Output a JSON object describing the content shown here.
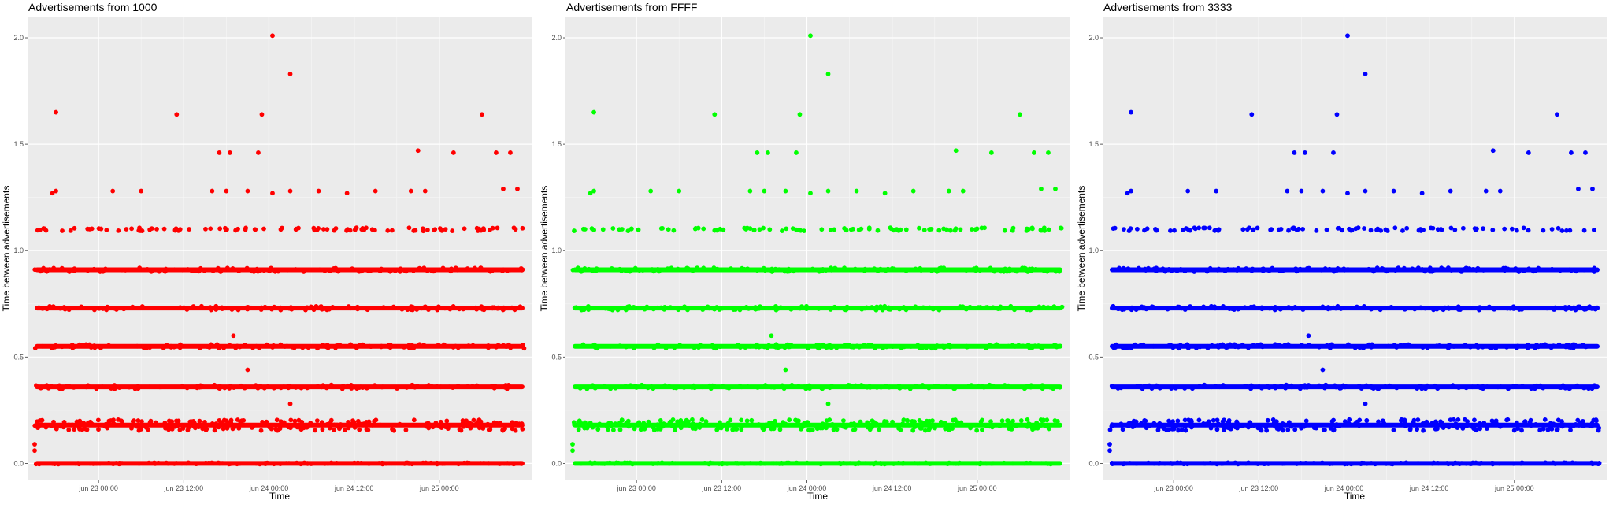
{
  "chart_data": [
    {
      "type": "scatter",
      "title": "Advertisements from 1000",
      "xlabel": "Time",
      "ylabel": "Time between advertisements",
      "color": "#ff0000",
      "ylim": [
        -0.08,
        2.1
      ],
      "xlim": [
        "2023-06-22T14:00",
        "2023-06-25T13:00"
      ],
      "x_ticks": [
        {
          "label": "jun 23 00:00",
          "value": "2023-06-23T00:00"
        },
        {
          "label": "jun 23 12:00",
          "value": "2023-06-23T12:00"
        },
        {
          "label": "jun 24 00:00",
          "value": "2023-06-24T00:00"
        },
        {
          "label": "jun 24 12:00",
          "value": "2023-06-24T12:00"
        },
        {
          "label": "jun 25 00:00",
          "value": "2023-06-25T00:00"
        }
      ],
      "y_ticks": [
        {
          "label": "0.0",
          "value": 0.0
        },
        {
          "label": "0.5",
          "value": 0.5
        },
        {
          "label": "1.0",
          "value": 1.0
        },
        {
          "label": "1.5",
          "value": 1.5
        },
        {
          "label": "2.0",
          "value": 2.0
        }
      ],
      "grid": true,
      "dense_bands": {
        "x_range": [
          "2023-06-22T15:00",
          "2023-06-25T12:00"
        ],
        "y_values": [
          0.0,
          0.18,
          0.36,
          0.55,
          0.73,
          0.91
        ]
      },
      "points": [
        {
          "x": "2023-06-22T18:00",
          "y": 1.65
        },
        {
          "x": "2023-06-22T18:00",
          "y": 1.28
        },
        {
          "x": "2023-06-22T17:30",
          "y": 1.27
        },
        {
          "x": "2023-06-23T02:00",
          "y": 1.28
        },
        {
          "x": "2023-06-23T06:00",
          "y": 1.28
        },
        {
          "x": "2023-06-23T11:00",
          "y": 1.64
        },
        {
          "x": "2023-06-23T17:00",
          "y": 1.46
        },
        {
          "x": "2023-06-23T18:30",
          "y": 1.46
        },
        {
          "x": "2023-06-23T16:00",
          "y": 1.28
        },
        {
          "x": "2023-06-23T18:00",
          "y": 1.28
        },
        {
          "x": "2023-06-23T21:00",
          "y": 1.28
        },
        {
          "x": "2023-06-23T23:00",
          "y": 1.64
        },
        {
          "x": "2023-06-23T22:30",
          "y": 1.46
        },
        {
          "x": "2023-06-24T00:30",
          "y": 2.01
        },
        {
          "x": "2023-06-24T03:00",
          "y": 1.83
        },
        {
          "x": "2023-06-24T00:30",
          "y": 1.27
        },
        {
          "x": "2023-06-24T03:00",
          "y": 1.28
        },
        {
          "x": "2023-06-24T07:00",
          "y": 1.28
        },
        {
          "x": "2023-06-24T11:00",
          "y": 1.27
        },
        {
          "x": "2023-06-24T15:00",
          "y": 1.28
        },
        {
          "x": "2023-06-24T21:00",
          "y": 1.47
        },
        {
          "x": "2023-06-24T20:00",
          "y": 1.28
        },
        {
          "x": "2023-06-24T22:00",
          "y": 1.28
        },
        {
          "x": "2023-06-25T02:00",
          "y": 1.46
        },
        {
          "x": "2023-06-25T06:00",
          "y": 1.64
        },
        {
          "x": "2023-06-25T08:00",
          "y": 1.46
        },
        {
          "x": "2023-06-25T10:00",
          "y": 1.46
        },
        {
          "x": "2023-06-25T09:00",
          "y": 1.29
        },
        {
          "x": "2023-06-25T11:00",
          "y": 1.29
        },
        {
          "x": "2023-06-23T19:00",
          "y": 0.6
        },
        {
          "x": "2023-06-23T21:00",
          "y": 0.44
        },
        {
          "x": "2023-06-24T03:00",
          "y": 0.28
        },
        {
          "x": "2023-06-22T15:00",
          "y": 0.09
        },
        {
          "x": "2023-06-22T15:00",
          "y": 0.06
        }
      ]
    },
    {
      "type": "scatter",
      "title": "Advertisements from FFFF",
      "xlabel": "Time",
      "ylabel": "Time between advertisements",
      "color": "#00ff00",
      "ylim": [
        -0.08,
        2.1
      ],
      "xlim": [
        "2023-06-22T14:00",
        "2023-06-25T13:00"
      ],
      "x_ticks": [
        {
          "label": "jun 23 00:00",
          "value": "2023-06-23T00:00"
        },
        {
          "label": "jun 23 12:00",
          "value": "2023-06-23T12:00"
        },
        {
          "label": "jun 24 00:00",
          "value": "2023-06-24T00:00"
        },
        {
          "label": "jun 24 12:00",
          "value": "2023-06-24T12:00"
        },
        {
          "label": "jun 25 00:00",
          "value": "2023-06-25T00:00"
        }
      ],
      "y_ticks": [
        {
          "label": "0.0",
          "value": 0.0
        },
        {
          "label": "0.5",
          "value": 0.5
        },
        {
          "label": "1.0",
          "value": 1.0
        },
        {
          "label": "1.5",
          "value": 1.5
        },
        {
          "label": "2.0",
          "value": 2.0
        }
      ],
      "grid": true,
      "dense_bands": {
        "x_range": [
          "2023-06-22T15:00",
          "2023-06-25T12:00"
        ],
        "y_values": [
          0.0,
          0.18,
          0.36,
          0.55,
          0.73,
          0.91
        ]
      },
      "points": [
        {
          "x": "2023-06-22T18:00",
          "y": 1.65
        },
        {
          "x": "2023-06-22T18:00",
          "y": 1.28
        },
        {
          "x": "2023-06-22T17:30",
          "y": 1.27
        },
        {
          "x": "2023-06-23T02:00",
          "y": 1.28
        },
        {
          "x": "2023-06-23T06:00",
          "y": 1.28
        },
        {
          "x": "2023-06-23T11:00",
          "y": 1.64
        },
        {
          "x": "2023-06-23T17:00",
          "y": 1.46
        },
        {
          "x": "2023-06-23T18:30",
          "y": 1.46
        },
        {
          "x": "2023-06-23T16:00",
          "y": 1.28
        },
        {
          "x": "2023-06-23T18:00",
          "y": 1.28
        },
        {
          "x": "2023-06-23T21:00",
          "y": 1.28
        },
        {
          "x": "2023-06-23T23:00",
          "y": 1.64
        },
        {
          "x": "2023-06-23T22:30",
          "y": 1.46
        },
        {
          "x": "2023-06-24T00:30",
          "y": 2.01
        },
        {
          "x": "2023-06-24T03:00",
          "y": 1.83
        },
        {
          "x": "2023-06-24T00:30",
          "y": 1.27
        },
        {
          "x": "2023-06-24T03:00",
          "y": 1.28
        },
        {
          "x": "2023-06-24T07:00",
          "y": 1.28
        },
        {
          "x": "2023-06-24T11:00",
          "y": 1.27
        },
        {
          "x": "2023-06-24T15:00",
          "y": 1.28
        },
        {
          "x": "2023-06-24T21:00",
          "y": 1.47
        },
        {
          "x": "2023-06-24T20:00",
          "y": 1.28
        },
        {
          "x": "2023-06-24T22:00",
          "y": 1.28
        },
        {
          "x": "2023-06-25T02:00",
          "y": 1.46
        },
        {
          "x": "2023-06-25T06:00",
          "y": 1.64
        },
        {
          "x": "2023-06-25T08:00",
          "y": 1.46
        },
        {
          "x": "2023-06-25T10:00",
          "y": 1.46
        },
        {
          "x": "2023-06-25T09:00",
          "y": 1.29
        },
        {
          "x": "2023-06-25T11:00",
          "y": 1.29
        },
        {
          "x": "2023-06-23T19:00",
          "y": 0.6
        },
        {
          "x": "2023-06-23T21:00",
          "y": 0.44
        },
        {
          "x": "2023-06-24T03:00",
          "y": 0.28
        },
        {
          "x": "2023-06-22T15:00",
          "y": 0.09
        },
        {
          "x": "2023-06-22T15:00",
          "y": 0.06
        }
      ]
    },
    {
      "type": "scatter",
      "title": "Advertisements from 3333",
      "xlabel": "Time",
      "ylabel": "Time between advertisements",
      "color": "#0000ff",
      "ylim": [
        -0.08,
        2.1
      ],
      "xlim": [
        "2023-06-22T14:00",
        "2023-06-25T13:00"
      ],
      "x_ticks": [
        {
          "label": "jun 23 00:00",
          "value": "2023-06-23T00:00"
        },
        {
          "label": "jun 23 12:00",
          "value": "2023-06-23T12:00"
        },
        {
          "label": "jun 24 00:00",
          "value": "2023-06-24T00:00"
        },
        {
          "label": "jun 24 12:00",
          "value": "2023-06-24T12:00"
        },
        {
          "label": "jun 25 00:00",
          "value": "2023-06-25T00:00"
        }
      ],
      "y_ticks": [
        {
          "label": "0.0",
          "value": 0.0
        },
        {
          "label": "0.5",
          "value": 0.5
        },
        {
          "label": "1.0",
          "value": 1.0
        },
        {
          "label": "1.5",
          "value": 1.5
        },
        {
          "label": "2.0",
          "value": 2.0
        }
      ],
      "grid": true,
      "dense_bands": {
        "x_range": [
          "2023-06-22T15:00",
          "2023-06-25T12:00"
        ],
        "y_values": [
          0.0,
          0.18,
          0.36,
          0.55,
          0.73,
          0.91
        ]
      },
      "points": [
        {
          "x": "2023-06-22T18:00",
          "y": 1.65
        },
        {
          "x": "2023-06-22T18:00",
          "y": 1.28
        },
        {
          "x": "2023-06-22T17:30",
          "y": 1.27
        },
        {
          "x": "2023-06-23T02:00",
          "y": 1.28
        },
        {
          "x": "2023-06-23T06:00",
          "y": 1.28
        },
        {
          "x": "2023-06-23T11:00",
          "y": 1.64
        },
        {
          "x": "2023-06-23T17:00",
          "y": 1.46
        },
        {
          "x": "2023-06-23T18:30",
          "y": 1.46
        },
        {
          "x": "2023-06-23T16:00",
          "y": 1.28
        },
        {
          "x": "2023-06-23T18:00",
          "y": 1.28
        },
        {
          "x": "2023-06-23T21:00",
          "y": 1.28
        },
        {
          "x": "2023-06-23T23:00",
          "y": 1.64
        },
        {
          "x": "2023-06-23T22:30",
          "y": 1.46
        },
        {
          "x": "2023-06-24T00:30",
          "y": 2.01
        },
        {
          "x": "2023-06-24T03:00",
          "y": 1.83
        },
        {
          "x": "2023-06-24T00:30",
          "y": 1.27
        },
        {
          "x": "2023-06-24T03:00",
          "y": 1.28
        },
        {
          "x": "2023-06-24T07:00",
          "y": 1.28
        },
        {
          "x": "2023-06-24T11:00",
          "y": 1.27
        },
        {
          "x": "2023-06-24T15:00",
          "y": 1.28
        },
        {
          "x": "2023-06-24T21:00",
          "y": 1.47
        },
        {
          "x": "2023-06-24T20:00",
          "y": 1.28
        },
        {
          "x": "2023-06-24T22:00",
          "y": 1.28
        },
        {
          "x": "2023-06-25T02:00",
          "y": 1.46
        },
        {
          "x": "2023-06-25T06:00",
          "y": 1.64
        },
        {
          "x": "2023-06-25T08:00",
          "y": 1.46
        },
        {
          "x": "2023-06-25T10:00",
          "y": 1.46
        },
        {
          "x": "2023-06-25T09:00",
          "y": 1.29
        },
        {
          "x": "2023-06-25T11:00",
          "y": 1.29
        },
        {
          "x": "2023-06-23T19:00",
          "y": 0.6
        },
        {
          "x": "2023-06-23T21:00",
          "y": 0.44
        },
        {
          "x": "2023-06-24T03:00",
          "y": 0.28
        },
        {
          "x": "2023-06-22T15:00",
          "y": 0.09
        },
        {
          "x": "2023-06-22T15:00",
          "y": 0.06
        }
      ]
    }
  ]
}
